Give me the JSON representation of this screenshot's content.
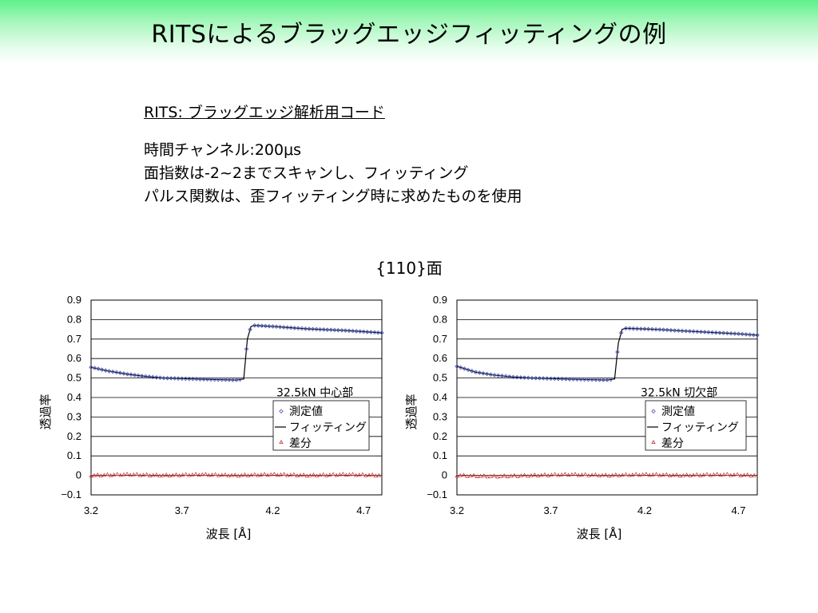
{
  "title": "RITSによるブラッグエッジフィッティングの例",
  "code_title": "RITS: ブラッグエッジ解析用コード",
  "description": [
    "時間チャンネル:200μs",
    "面指数は-2~2までスキャンし、フィッティング",
    "パルス関数は、歪フィッティング時に求めたものを使用"
  ],
  "plane_label": "{110}面",
  "colors": {
    "measured": "#4a56b8",
    "fit": "#000000",
    "diff": "#cc2a2a"
  },
  "chart_data": [
    {
      "type": "scatter",
      "annotation": "32.5kN 中心部",
      "xlabel": "波長 [Å]",
      "ylabel": "透過率",
      "xlim": [
        3.2,
        4.8
      ],
      "ylim": [
        -0.1,
        0.9
      ],
      "xticks": [
        "3.2",
        "3.7",
        "4.2",
        "4.7"
      ],
      "yticks": [
        "0.9",
        "0.8",
        "0.7",
        "0.6",
        "0.5",
        "0.4",
        "0.3",
        "0.2",
        "0.1",
        "0",
        "−0.1"
      ],
      "grid": true,
      "legend": [
        "測定値",
        "フィッティング",
        "差分"
      ],
      "edge": 4.05,
      "series": [
        {
          "name": "測定値",
          "x": [
            3.2,
            3.3,
            3.4,
            3.5,
            3.6,
            3.7,
            3.8,
            3.9,
            4.0,
            4.04,
            4.06,
            4.08,
            4.1,
            4.2,
            4.3,
            4.4,
            4.5,
            4.6,
            4.7,
            4.8
          ],
          "y": [
            0.555,
            0.535,
            0.52,
            0.508,
            0.5,
            0.497,
            0.494,
            0.492,
            0.49,
            0.495,
            0.7,
            0.765,
            0.77,
            0.765,
            0.758,
            0.752,
            0.748,
            0.744,
            0.738,
            0.732
          ]
        },
        {
          "name": "フィッティング",
          "x": [
            3.2,
            3.3,
            3.4,
            3.5,
            3.6,
            3.7,
            3.8,
            3.9,
            4.0,
            4.04,
            4.06,
            4.08,
            4.1,
            4.2,
            4.3,
            4.4,
            4.5,
            4.6,
            4.7,
            4.8
          ],
          "y": [
            0.555,
            0.535,
            0.52,
            0.508,
            0.5,
            0.497,
            0.494,
            0.492,
            0.49,
            0.495,
            0.7,
            0.765,
            0.77,
            0.765,
            0.758,
            0.752,
            0.748,
            0.744,
            0.738,
            0.732
          ]
        },
        {
          "name": "差分",
          "x": [
            3.2,
            3.4,
            3.6,
            3.8,
            4.0,
            4.2,
            4.4,
            4.6,
            4.8
          ],
          "y": [
            0.0,
            0.005,
            0.0,
            0.005,
            0.0,
            0.005,
            0.0,
            0.005,
            0.0
          ]
        }
      ]
    },
    {
      "type": "scatter",
      "annotation": "32.5kN 切欠部",
      "xlabel": "波長 [Å]",
      "ylabel": "透過率",
      "xlim": [
        3.2,
        4.8
      ],
      "ylim": [
        -0.1,
        0.9
      ],
      "xticks": [
        "3.2",
        "3.7",
        "4.2",
        "4.7"
      ],
      "yticks": [
        "0.9",
        "0.8",
        "0.7",
        "0.6",
        "0.5",
        "0.4",
        "0.3",
        "0.2",
        "0.1",
        "0",
        "−0.1"
      ],
      "grid": true,
      "legend": [
        "測定値",
        "フィッティング",
        "差分"
      ],
      "edge": 4.05,
      "series": [
        {
          "name": "測定値",
          "x": [
            3.2,
            3.3,
            3.4,
            3.5,
            3.6,
            3.7,
            3.8,
            3.9,
            4.0,
            4.04,
            4.06,
            4.08,
            4.1,
            4.2,
            4.3,
            4.4,
            4.5,
            4.6,
            4.7,
            4.8
          ],
          "y": [
            0.56,
            0.53,
            0.515,
            0.505,
            0.5,
            0.497,
            0.494,
            0.492,
            0.49,
            0.495,
            0.68,
            0.75,
            0.755,
            0.752,
            0.748,
            0.742,
            0.737,
            0.732,
            0.727,
            0.72
          ]
        },
        {
          "name": "フィッティング",
          "x": [
            3.2,
            3.3,
            3.4,
            3.5,
            3.6,
            3.7,
            3.8,
            3.9,
            4.0,
            4.04,
            4.06,
            4.08,
            4.1,
            4.2,
            4.3,
            4.4,
            4.5,
            4.6,
            4.7,
            4.8
          ],
          "y": [
            0.56,
            0.53,
            0.515,
            0.505,
            0.5,
            0.497,
            0.494,
            0.492,
            0.49,
            0.495,
            0.68,
            0.75,
            0.755,
            0.752,
            0.748,
            0.742,
            0.737,
            0.732,
            0.727,
            0.72
          ]
        },
        {
          "name": "差分",
          "x": [
            3.2,
            3.4,
            3.6,
            3.8,
            4.0,
            4.2,
            4.4,
            4.6,
            4.8
          ],
          "y": [
            0.0,
            -0.005,
            0.0,
            0.005,
            0.0,
            0.005,
            0.0,
            0.005,
            0.0
          ]
        }
      ]
    }
  ]
}
